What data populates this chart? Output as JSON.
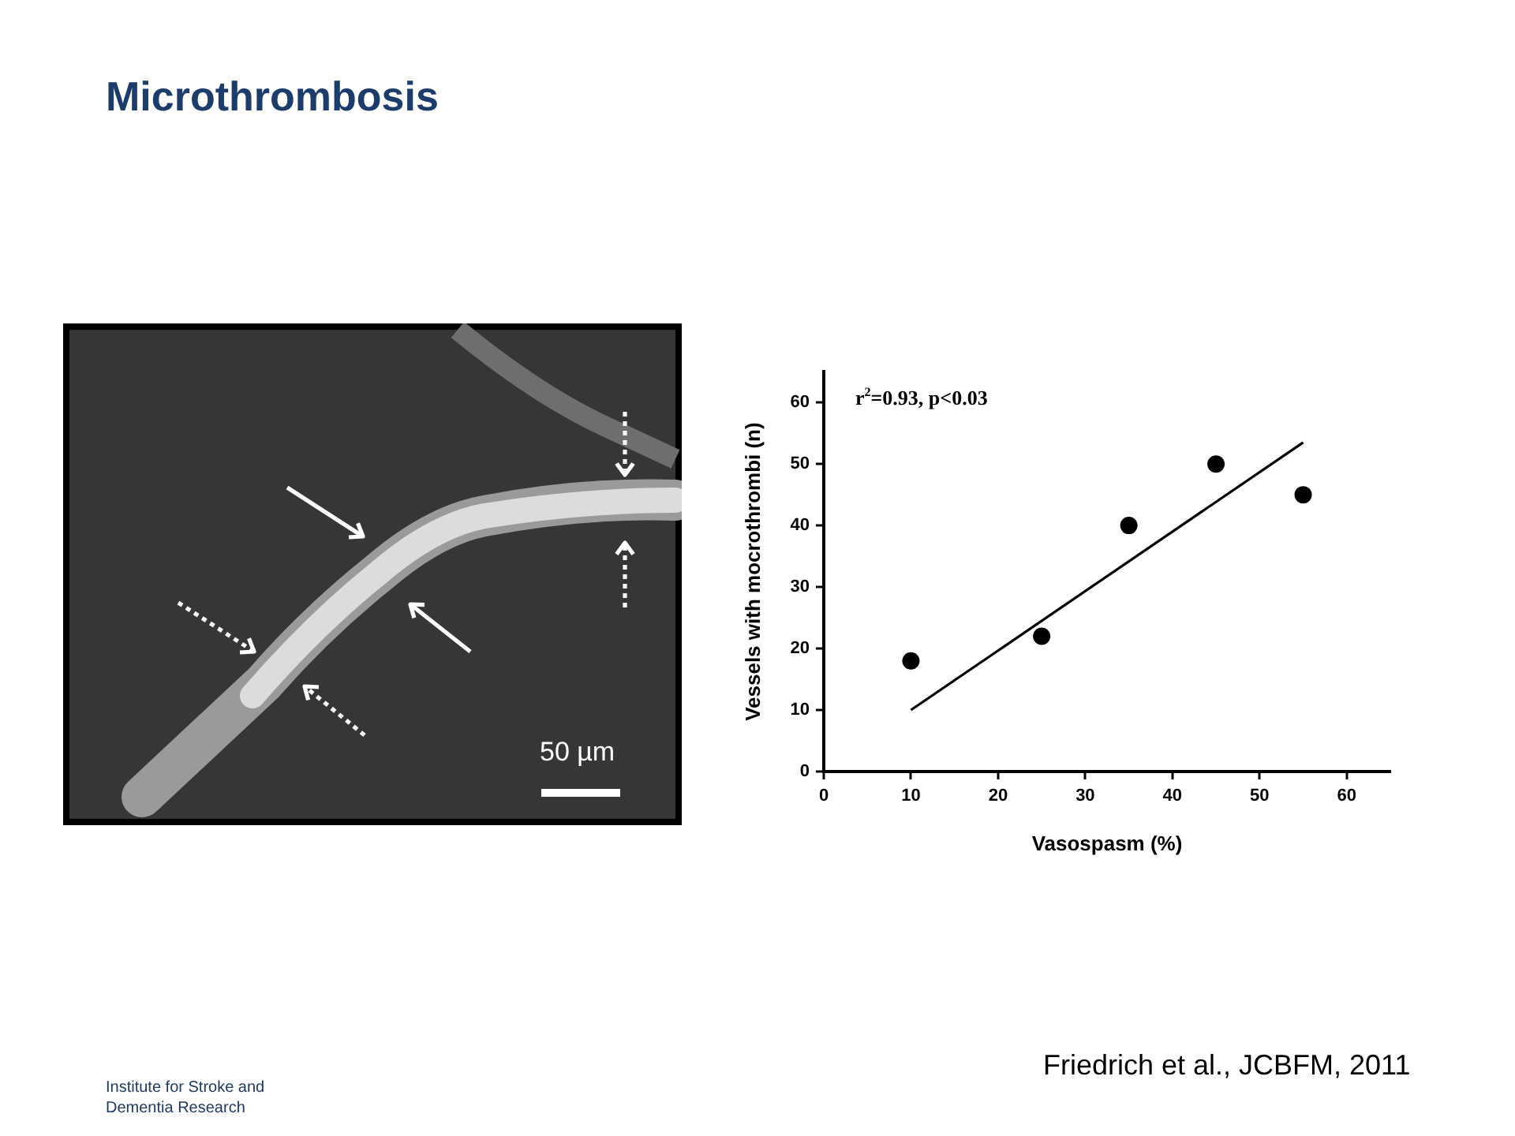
{
  "chart_data": {
    "type": "scatter",
    "title": "Microthrombosis",
    "xlabel": "Vasospasm (%)",
    "ylabel": "Vessels with mocrothrombi (n)",
    "xlim": [
      0,
      65
    ],
    "ylim": [
      0,
      65
    ],
    "xticks": [
      0,
      10,
      20,
      30,
      40,
      50,
      60
    ],
    "yticks": [
      0,
      10,
      20,
      30,
      40,
      50,
      60
    ],
    "marker": "circle",
    "series": [
      {
        "type": "scatter",
        "color": "#000000",
        "x": [
          10,
          25,
          35,
          45,
          55
        ],
        "values": [
          18,
          22,
          40,
          50,
          45
        ]
      },
      {
        "type": "line",
        "color": "#000000",
        "marker": "none",
        "x": [
          10,
          55
        ],
        "values": [
          10,
          53.5
        ]
      }
    ],
    "annotations": [
      "r$^{2}$=0.93, p<0.03",
      "50 µm",
      "Institute for Stroke and Dementia Research",
      "Friedrich et al., JCBFM, 2011"
    ]
  }
}
